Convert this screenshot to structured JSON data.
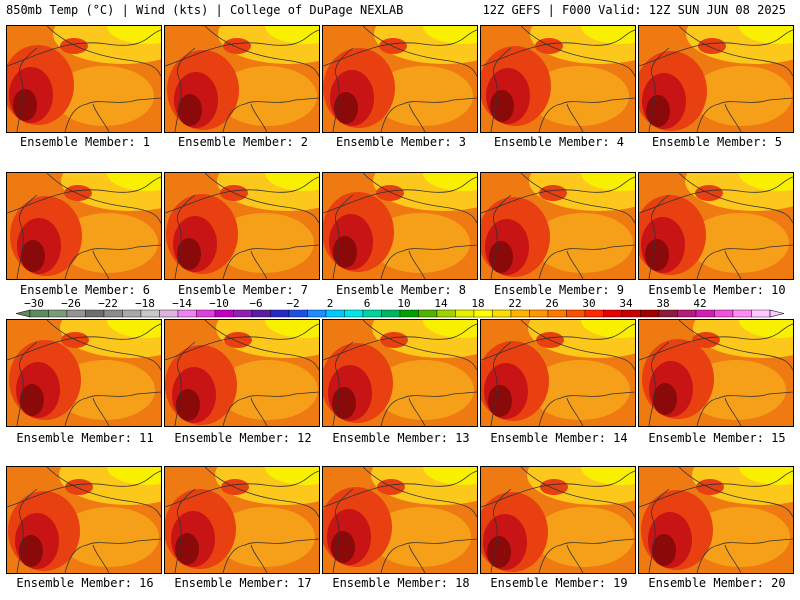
{
  "header": {
    "left": "850mb Temp (°C) | Wind (kts) | College of DuPage NEXLAB",
    "right": "12Z GEFS | F000 Valid: 12Z SUN JUN 08 2025"
  },
  "members": [
    "Ensemble Member: 1",
    "Ensemble Member: 2",
    "Ensemble Member: 3",
    "Ensemble Member: 4",
    "Ensemble Member: 5",
    "Ensemble Member: 6",
    "Ensemble Member: 7",
    "Ensemble Member: 8",
    "Ensemble Member: 9",
    "Ensemble Member: 10",
    "Ensemble Member: 11",
    "Ensemble Member: 12",
    "Ensemble Member: 13",
    "Ensemble Member: 14",
    "Ensemble Member: 15",
    "Ensemble Member: 16",
    "Ensemble Member: 17",
    "Ensemble Member: 18",
    "Ensemble Member: 19",
    "Ensemble Member: 20"
  ],
  "colorbar": {
    "labels": [
      "−30",
      "−26",
      "−22",
      "−18",
      "−14",
      "−10",
      "−6",
      "−2",
      "2",
      "6",
      "10",
      "14",
      "18",
      "22",
      "26",
      "30",
      "34",
      "38",
      "42"
    ],
    "colors": [
      "#5f8a5f",
      "#7a9a7a",
      "#949494",
      "#6e6e6e",
      "#8c8c8c",
      "#a8a8a8",
      "#c8c8c8",
      "#dcb4dc",
      "#ee82ee",
      "#e040e0",
      "#c000c0",
      "#9020b0",
      "#5a1ea0",
      "#2828c8",
      "#1e50e6",
      "#1e8cff",
      "#00c8ff",
      "#00e6e6",
      "#00d2a0",
      "#00b464",
      "#00a000",
      "#50b400",
      "#a0d200",
      "#e6f000",
      "#ffff00",
      "#ffdc00",
      "#ffb400",
      "#ff9600",
      "#ff7800",
      "#ff5000",
      "#ff2800",
      "#e60000",
      "#c80000",
      "#a00000",
      "#8c1e3c",
      "#b41e78",
      "#d21eb4",
      "#f050dc",
      "#ff8cf0",
      "#ffc8ff"
    ]
  },
  "palette": {
    "warmest": "#8a0a0a",
    "hot": "#c81414",
    "warm": "#e84010",
    "mid": "#f07a12",
    "cool": "#f6a01a",
    "cooler": "#fcc81c",
    "coolest": "#f8f000",
    "line": "#333333"
  }
}
